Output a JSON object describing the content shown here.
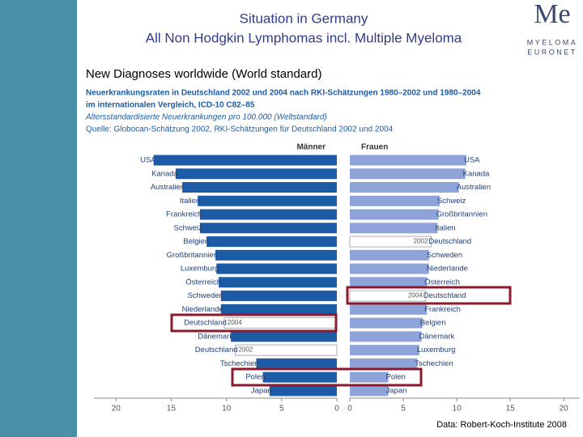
{
  "slide": {
    "title": [
      "Situation in Germany",
      "All Non Hodgkin Lymphomas incl. Multiple Myeloma"
    ],
    "subtitle": "New Diagnoses worldwide (World standard)",
    "logo": {
      "mark": "Me",
      "name": [
        "MYELOMA",
        "EURONET"
      ]
    },
    "source": "Data: Robert-Koch-Institute 2008",
    "chart_header": [
      "Neuerkrankungsraten in Deutschland 2002 und 2004 nach RKI-Schätzungen 1980–2002 und 1980–2004",
      "im internationalen Vergleich, ICD-10 C82–85",
      "Altersstandardisierte Neuerkrankungen pro 100.000 (Weltstandard)",
      "Quelle: Globocan-Schätzung 2002, RKI-Schätzungen für Deutschland 2002 und 2004"
    ]
  },
  "chart_data": [
    {
      "type": "bar",
      "orientation": "horizontal",
      "title": "Männer",
      "categories": [
        "USA",
        "Kanada",
        "Australien",
        "Italien",
        "Frankreich",
        "Schweiz",
        "Belgien",
        "Großbritannien",
        "Luxemburg",
        "Österreich",
        "Schweden",
        "Niederlande",
        "Deutschland",
        "Dänemark",
        "Deutschland",
        "Tschechien",
        "Polen",
        "Japan"
      ],
      "values": [
        16.6,
        14.6,
        14.0,
        12.6,
        12.4,
        12.4,
        11.8,
        11.0,
        10.9,
        10.7,
        10.5,
        10.5,
        10.2,
        9.6,
        9.2,
        7.3,
        6.7,
        6.1
      ],
      "bar_labels": [
        null,
        null,
        null,
        null,
        null,
        null,
        null,
        null,
        null,
        null,
        null,
        null,
        "2004",
        null,
        "2002",
        null,
        null,
        null
      ],
      "colors": [
        "#1c5ba5",
        "#1c5ba5",
        "#1c5ba5",
        "#1c5ba5",
        "#1c5ba5",
        "#1c5ba5",
        "#1c5ba5",
        "#1c5ba5",
        "#1c5ba5",
        "#1c5ba5",
        "#1c5ba5",
        "#1c5ba5",
        "#ffffff",
        "#1c5ba5",
        "#ffffff",
        "#1c5ba5",
        "#1c5ba5",
        "#1c5ba5"
      ],
      "xlim": [
        22,
        0
      ],
      "xticks": [
        20,
        15,
        10,
        5,
        0
      ]
    },
    {
      "type": "bar",
      "orientation": "horizontal",
      "title": "Frauen",
      "categories": [
        "USA",
        "Kanada",
        "Australien",
        "Schweiz",
        "Großbritannien",
        "Italien",
        "Deutschland",
        "Schweden",
        "Niederlande",
        "Österreich",
        "Deutschland",
        "Frankreich",
        "Belgien",
        "Dänemark",
        "Luxemburg",
        "Tschechien",
        "Polen",
        "Japan"
      ],
      "values": [
        10.9,
        10.8,
        10.2,
        8.4,
        8.3,
        8.2,
        7.6,
        7.4,
        7.4,
        7.2,
        7.1,
        7.2,
        6.8,
        6.7,
        6.5,
        6.3,
        3.6,
        3.6
      ],
      "bar_labels": [
        null,
        null,
        null,
        null,
        null,
        null,
        "2002",
        null,
        null,
        null,
        "2004",
        null,
        null,
        null,
        null,
        null,
        null,
        null
      ],
      "colors": [
        "#8ea4d8",
        "#8ea4d8",
        "#8ea4d8",
        "#8ea4d8",
        "#8ea4d8",
        "#8ea4d8",
        "#ffffff",
        "#8ea4d8",
        "#8ea4d8",
        "#8ea4d8",
        "#ffffff",
        "#8ea4d8",
        "#8ea4d8",
        "#8ea4d8",
        "#8ea4d8",
        "#8ea4d8",
        "#8ea4d8",
        "#8ea4d8"
      ],
      "xlim": [
        0,
        21.5
      ],
      "xticks": [
        0,
        5,
        10,
        15,
        20
      ]
    }
  ]
}
